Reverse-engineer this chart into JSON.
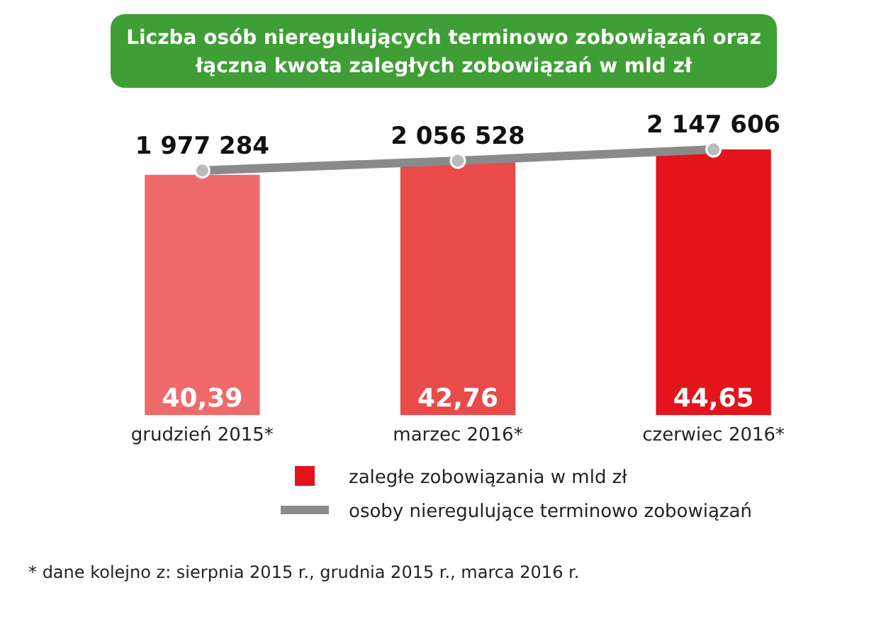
{
  "chart_data": {
    "type": "bar",
    "title": "Liczba osób nieregulujących terminowo zobowiązań oraz łączna kwota zaległych zobowiązań w mld zł",
    "categories": [
      "grudzień 2015*",
      "marzec 2016*",
      "czerwiec 2016*"
    ],
    "series": [
      {
        "name": "zaległe zobowiązania w mld zł",
        "color": "#e3141c",
        "colors": [
          "#ef6b6b",
          "#e94a4a",
          "#e3141c"
        ],
        "values": [
          40.39,
          42.76,
          44.65
        ],
        "value_labels": [
          "40,39",
          "42,76",
          "44,65"
        ]
      },
      {
        "name": "osoby nieregulujące terminowo zobowiązań",
        "type": "line",
        "axis": "y2",
        "color": "#8a8a8a",
        "values": [
          1977284,
          2056528,
          2147606
        ],
        "value_labels": [
          "1 977 284",
          "2 056 528",
          "2 147 606"
        ]
      }
    ],
    "legend": "bottom",
    "marker": "circle",
    "line_style": "solid",
    "annotations": [
      "* dane kolejno z: sierpnia 2015 r., grudnia 2015 r., marca 2016 r."
    ]
  }
}
